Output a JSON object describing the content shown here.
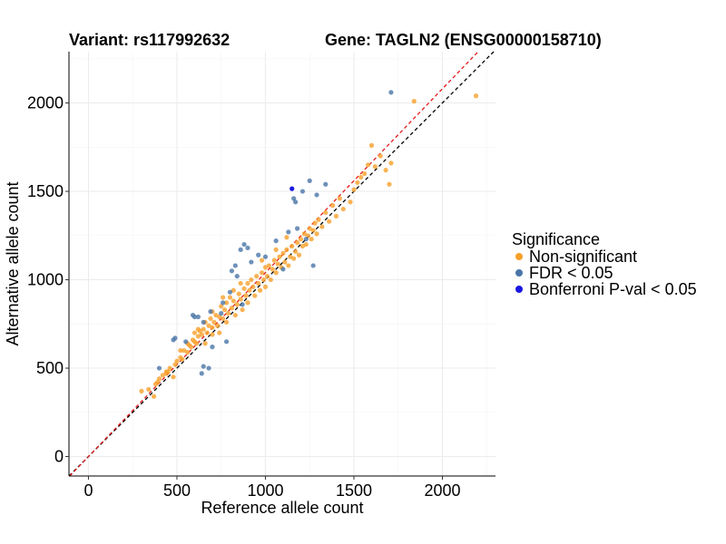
{
  "chart_data": {
    "type": "scatter",
    "title_left": "Variant: rs117992632",
    "title_right": "Gene: TAGLN2 (ENSG00000158710)",
    "xlabel": "Reference allele count",
    "ylabel": "Alternative allele count",
    "xlim": [
      -110,
      2300
    ],
    "ylim": [
      -110,
      2290
    ],
    "xticks": [
      0,
      500,
      1000,
      1500,
      2000
    ],
    "yticks": [
      0,
      500,
      1000,
      1500,
      2000
    ],
    "grid": true,
    "legend": {
      "title": "Significance",
      "placement": "right",
      "entries": [
        {
          "label": "Non-significant",
          "color": "#f7a02a"
        },
        {
          "label": "FDR < 0.05",
          "color": "#4a76a8"
        },
        {
          "label": "Bonferroni P-val < 0.05",
          "color": "#1a18e0"
        }
      ]
    },
    "reference_lines": [
      {
        "slope": 1.0,
        "intercept": 0,
        "color": "#000000",
        "style": "dashed"
      },
      {
        "slope": 1.04,
        "intercept": 0,
        "color": "#e41a1c",
        "style": "dashed"
      }
    ],
    "series": [
      {
        "name": "Non-significant",
        "color": "#f7a02a",
        "points": [
          [
            300,
            370
          ],
          [
            340,
            380
          ],
          [
            370,
            340
          ],
          [
            380,
            410
          ],
          [
            390,
            420
          ],
          [
            400,
            440
          ],
          [
            420,
            460
          ],
          [
            440,
            470
          ],
          [
            450,
            480
          ],
          [
            460,
            500
          ],
          [
            490,
            520
          ],
          [
            500,
            540
          ],
          [
            520,
            560
          ],
          [
            530,
            550
          ],
          [
            540,
            600
          ],
          [
            560,
            590
          ],
          [
            570,
            630
          ],
          [
            580,
            620
          ],
          [
            590,
            660
          ],
          [
            600,
            650
          ],
          [
            600,
            700
          ],
          [
            610,
            640
          ],
          [
            620,
            680
          ],
          [
            630,
            710
          ],
          [
            640,
            690
          ],
          [
            650,
            720
          ],
          [
            660,
            760
          ],
          [
            670,
            700
          ],
          [
            680,
            740
          ],
          [
            690,
            780
          ],
          [
            700,
            730
          ],
          [
            700,
            820
          ],
          [
            710,
            760
          ],
          [
            720,
            800
          ],
          [
            730,
            740
          ],
          [
            740,
            790
          ],
          [
            750,
            850
          ],
          [
            760,
            780
          ],
          [
            770,
            830
          ],
          [
            780,
            760
          ],
          [
            780,
            870
          ],
          [
            790,
            810
          ],
          [
            800,
            900
          ],
          [
            810,
            840
          ],
          [
            820,
            880
          ],
          [
            830,
            800
          ],
          [
            840,
            860
          ],
          [
            850,
            920
          ],
          [
            860,
            890
          ],
          [
            870,
            830
          ],
          [
            880,
            950
          ],
          [
            890,
            910
          ],
          [
            900,
            870
          ],
          [
            900,
            980
          ],
          [
            910,
            940
          ],
          [
            920,
            1000
          ],
          [
            930,
            960
          ],
          [
            940,
            910
          ],
          [
            950,
            1020
          ],
          [
            960,
            980
          ],
          [
            970,
            940
          ],
          [
            980,
            1040
          ],
          [
            990,
            1000
          ],
          [
            1000,
            960
          ],
          [
            1000,
            1070
          ],
          [
            1010,
            1020
          ],
          [
            1020,
            1080
          ],
          [
            1030,
            1000
          ],
          [
            1040,
            1060
          ],
          [
            1050,
            1110
          ],
          [
            1060,
            1040
          ],
          [
            1070,
            1090
          ],
          [
            1080,
            1130
          ],
          [
            1090,
            1070
          ],
          [
            1100,
            1150
          ],
          [
            1110,
            1100
          ],
          [
            1120,
            1170
          ],
          [
            1130,
            1080
          ],
          [
            1140,
            1130
          ],
          [
            1150,
            1190
          ],
          [
            1160,
            1120
          ],
          [
            1170,
            1160
          ],
          [
            1180,
            1210
          ],
          [
            1190,
            1140
          ],
          [
            1200,
            1230
          ],
          [
            1210,
            1190
          ],
          [
            1220,
            1260
          ],
          [
            1230,
            1200
          ],
          [
            1240,
            1250
          ],
          [
            1250,
            1290
          ],
          [
            1260,
            1230
          ],
          [
            1270,
            1280
          ],
          [
            1280,
            1320
          ],
          [
            1290,
            1260
          ],
          [
            1300,
            1340
          ],
          [
            1320,
            1300
          ],
          [
            1340,
            1380
          ],
          [
            1360,
            1330
          ],
          [
            1380,
            1420
          ],
          [
            1400,
            1360
          ],
          [
            1420,
            1460
          ],
          [
            1440,
            1400
          ],
          [
            1480,
            1440
          ],
          [
            1500,
            1510
          ],
          [
            1520,
            1550
          ],
          [
            1540,
            1580
          ],
          [
            1560,
            1600
          ],
          [
            1580,
            1650
          ],
          [
            1600,
            1760
          ],
          [
            1620,
            1640
          ],
          [
            1650,
            1700
          ],
          [
            1680,
            1620
          ],
          [
            1700,
            1540
          ],
          [
            1710,
            1660
          ],
          [
            1840,
            2010
          ],
          [
            2190,
            2040
          ],
          [
            860,
            980
          ],
          [
            820,
            940
          ],
          [
            760,
            900
          ],
          [
            700,
            690
          ],
          [
            660,
            640
          ],
          [
            560,
            640
          ],
          [
            520,
            600
          ],
          [
            480,
            450
          ],
          [
            440,
            480
          ],
          [
            620,
            720
          ],
          [
            740,
            700
          ],
          [
            980,
            1110
          ],
          [
            1060,
            1170
          ],
          [
            1120,
            1240
          ]
        ]
      },
      {
        "name": "FDR < 0.05",
        "color": "#4a76a8",
        "points": [
          [
            400,
            500
          ],
          [
            480,
            660
          ],
          [
            490,
            670
          ],
          [
            550,
            650
          ],
          [
            590,
            800
          ],
          [
            600,
            790
          ],
          [
            620,
            790
          ],
          [
            640,
            470
          ],
          [
            650,
            760
          ],
          [
            650,
            510
          ],
          [
            680,
            500
          ],
          [
            690,
            820
          ],
          [
            700,
            620
          ],
          [
            750,
            810
          ],
          [
            760,
            870
          ],
          [
            780,
            650
          ],
          [
            800,
            930
          ],
          [
            810,
            1050
          ],
          [
            830,
            1080
          ],
          [
            840,
            1020
          ],
          [
            860,
            1170
          ],
          [
            870,
            860
          ],
          [
            880,
            1200
          ],
          [
            900,
            1180
          ],
          [
            920,
            1100
          ],
          [
            1060,
            1220
          ],
          [
            1130,
            1270
          ],
          [
            1160,
            1460
          ],
          [
            1170,
            1440
          ],
          [
            1210,
            1500
          ],
          [
            1230,
            1230
          ],
          [
            1250,
            1560
          ],
          [
            1270,
            1080
          ],
          [
            1290,
            1480
          ],
          [
            1340,
            1540
          ],
          [
            1710,
            2060
          ],
          [
            1000,
            1130
          ],
          [
            1100,
            1060
          ],
          [
            1180,
            1290
          ],
          [
            960,
            1140
          ]
        ]
      },
      {
        "name": "Bonferroni P-val < 0.05",
        "color": "#1a18e0",
        "points": [
          [
            1150,
            1515
          ]
        ]
      }
    ]
  }
}
